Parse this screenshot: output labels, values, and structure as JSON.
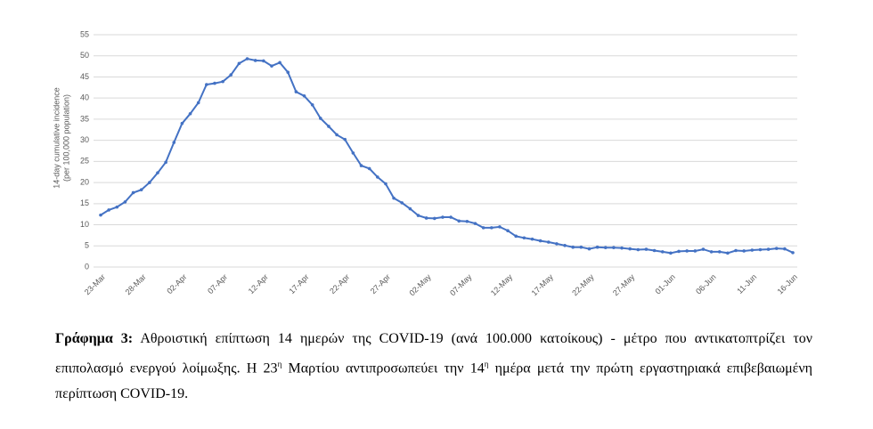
{
  "chart_data": {
    "type": "line",
    "y_label": [
      "14-day cumulative incidence",
      "(per 100,000 population)"
    ],
    "categories": [
      "23-Mar",
      null,
      null,
      null,
      null,
      "28-Mar",
      null,
      null,
      null,
      null,
      "02-Apr",
      null,
      null,
      null,
      null,
      "07-Apr",
      null,
      null,
      null,
      null,
      "12-Apr",
      null,
      null,
      null,
      null,
      "17-Apr",
      null,
      null,
      null,
      null,
      "22-Apr",
      null,
      null,
      null,
      null,
      "27-Apr",
      null,
      null,
      null,
      null,
      "02-May",
      null,
      null,
      null,
      null,
      "07-May",
      null,
      null,
      null,
      null,
      "12-May",
      null,
      null,
      null,
      null,
      "17-May",
      null,
      null,
      null,
      null,
      "22-May",
      null,
      null,
      null,
      null,
      "27-May",
      null,
      null,
      null,
      null,
      "01-Jun",
      null,
      null,
      null,
      null,
      "06-Jun",
      null,
      null,
      null,
      null,
      "11-Jun",
      null,
      null,
      null,
      null,
      "16-Jun"
    ],
    "values": [
      12.3,
      13.5,
      14.2,
      15.4,
      17.6,
      18.3,
      20,
      22.3,
      24.8,
      29.5,
      34,
      36.3,
      38.9,
      43.2,
      43.5,
      43.9,
      45.5,
      48.2,
      49.3,
      48.9,
      48.8,
      47.6,
      48.4,
      46.1,
      41.5,
      40.5,
      38.4,
      35.2,
      33.3,
      31.3,
      30.2,
      27,
      24,
      23.3,
      21.3,
      19.7,
      16.3,
      15.2,
      13.8,
      12.2,
      11.6,
      11.5,
      11.8,
      11.8,
      10.9,
      10.8,
      10.3,
      9.3,
      9.3,
      9.5,
      8.6,
      7.3,
      6.9,
      6.6,
      6.2,
      5.9,
      5.5,
      5.1,
      4.7,
      4.7,
      4.3,
      4.7,
      4.6,
      4.6,
      4.5,
      4.3,
      4.1,
      4.2,
      3.9,
      3.6,
      3.3,
      3.7,
      3.8,
      3.8,
      4.2,
      3.6,
      3.6,
      3.3,
      3.9,
      3.8,
      4,
      4.1,
      4.2,
      4.4,
      4.3,
      3.4
    ],
    "color": "#4472c4",
    "ylim": [
      0,
      55
    ],
    "yticks": [
      0,
      5,
      10,
      15,
      20,
      25,
      30,
      35,
      40,
      45,
      50,
      55
    ],
    "grid": true
  },
  "caption": {
    "label": "Γράφημα 3:",
    "text": [
      " Αθροιστική επίπτωση 14 ημερών της COVID-19 (ανά 100.000 κατοίκους) - μέτρο που αντικατοπτρίζει τον επιπολασμό ενεργού λοίμωξης. Η 23",
      " Μαρτίου αντιπροσωπεύει την 14",
      " ημέρα μετά την πρώτη εργαστηριακά επιβεβαιωμένη περίπτωση COVID-19."
    ],
    "sup": [
      "η",
      "η"
    ]
  }
}
